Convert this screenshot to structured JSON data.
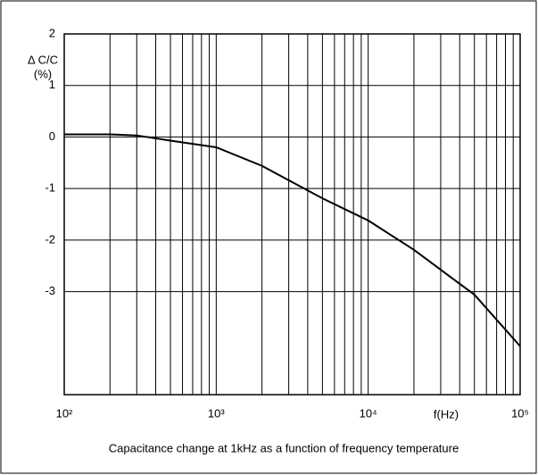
{
  "chart_data": {
    "type": "line",
    "caption": "Capacitance change at 1kHz as a function of frequency temperature",
    "y_label": [
      "Δ C/C",
      "(%)"
    ],
    "x_label": "f(Hz)",
    "log_x": true,
    "grid": true,
    "xlim": [
      100,
      100000
    ],
    "xticks": [
      {
        "value": 100,
        "label": "10²"
      },
      {
        "value": 1000,
        "label": "10³"
      },
      {
        "value": 10000,
        "label": "10⁴"
      },
      {
        "value": 100000,
        "label": "10⁵"
      }
    ],
    "ylim": [
      -5,
      2
    ],
    "yticks": [
      2,
      1,
      0,
      -1,
      -2,
      -3
    ],
    "series": [
      {
        "color": "#000000",
        "x": [
          100,
          200,
          300,
          500,
          1000,
          2000,
          3000,
          5000,
          10000,
          20000,
          50000,
          100000
        ],
        "values": [
          0.05,
          0.05,
          0.03,
          -0.07,
          -0.2,
          -0.56,
          -0.84,
          -1.19,
          -1.62,
          -2.19,
          -3.06,
          -4.06
        ]
      }
    ]
  }
}
